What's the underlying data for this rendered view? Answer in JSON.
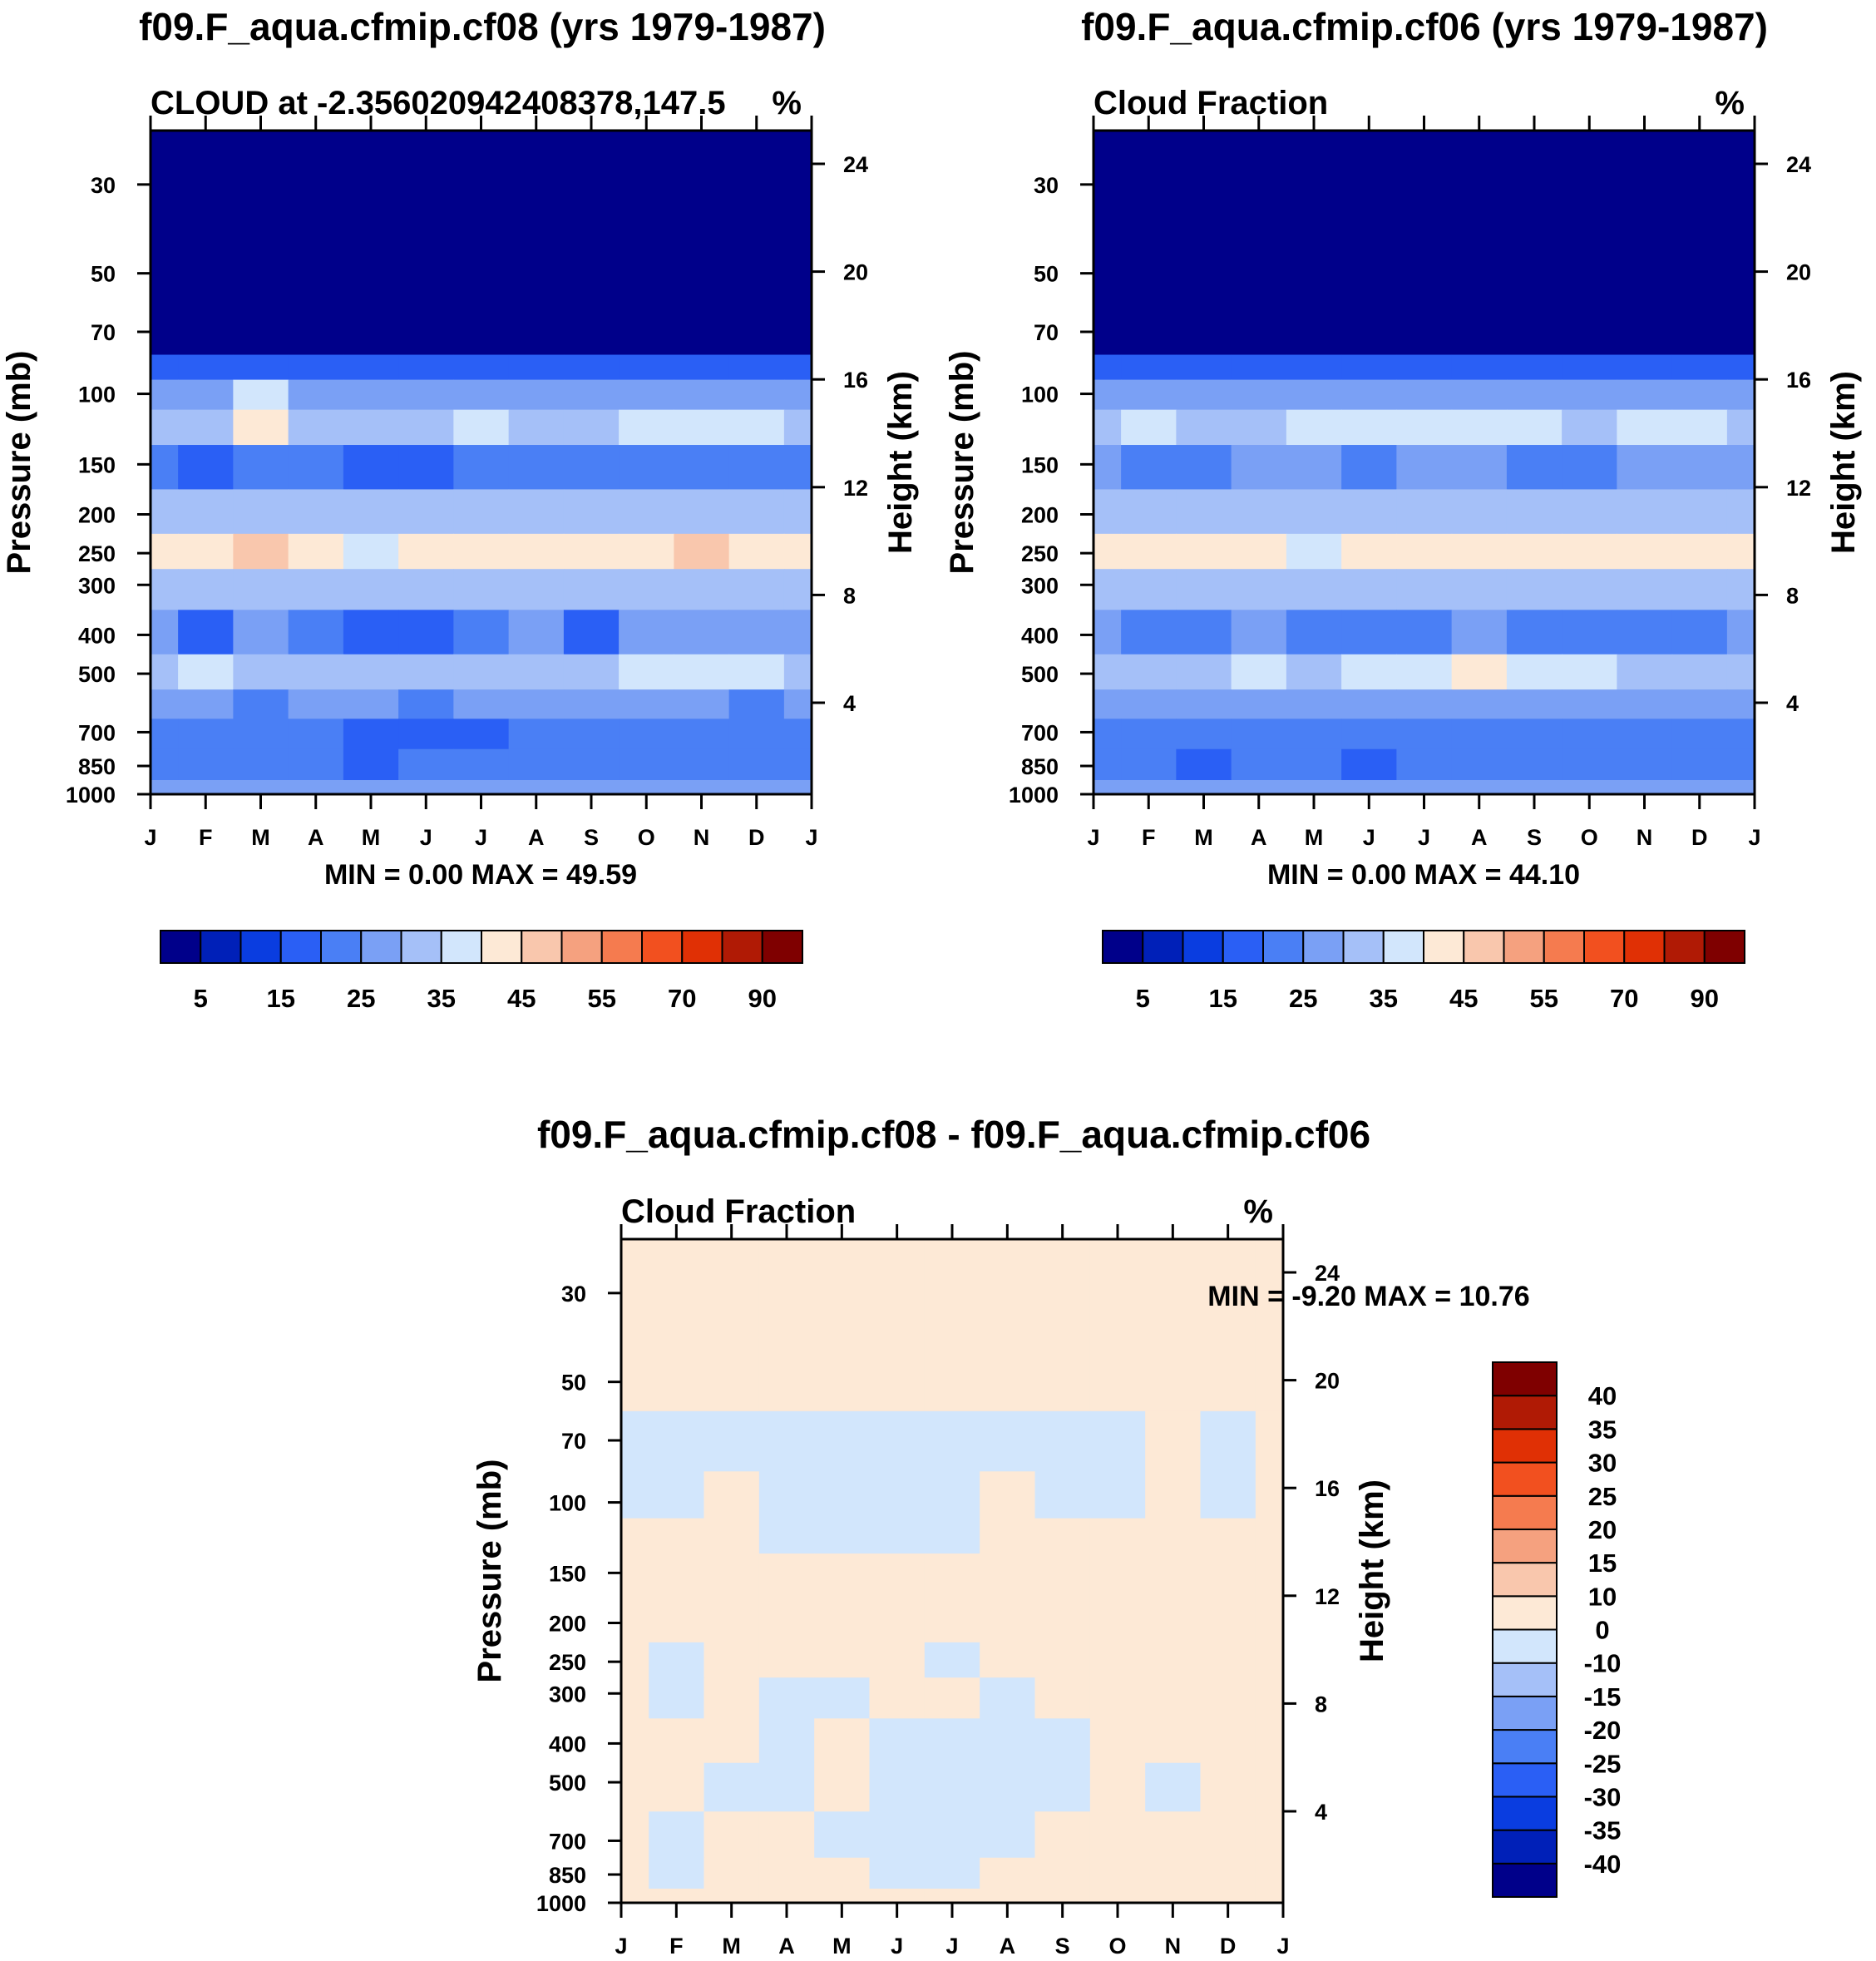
{
  "chart_data": [
    {
      "type": "heatmap",
      "title": "f09.F_aqua.cfmip.cf08 (yrs 1979-1987)",
      "subtitle_left": "CLOUD at -2.356020942408378,147.5",
      "subtitle_right": "%",
      "ylabel": "Pressure (mb)",
      "ylabel_right": "Height (km)",
      "x_ticks": [
        "J",
        "F",
        "M",
        "A",
        "M",
        "J",
        "J",
        "A",
        "S",
        "O",
        "N",
        "D",
        "J"
      ],
      "y_ticks": [
        "30",
        "50",
        "70",
        "100",
        "150",
        "200",
        "250",
        "300",
        "400",
        "500",
        "700",
        "850",
        "1000"
      ],
      "y_ticks_right": [
        "24",
        "20",
        "16",
        "12",
        "8",
        "4"
      ],
      "min_max_label": "MIN =    0.00 MAX =  49.59",
      "min_value": 0.0,
      "max_value": 49.59,
      "colorbar_labels": [
        "5",
        "15",
        "25",
        "35",
        "45",
        "55",
        "70",
        "90"
      ],
      "colorbar_levels": [
        0,
        5,
        10,
        15,
        20,
        25,
        30,
        35,
        40,
        45,
        50,
        55,
        60,
        70,
        80,
        90,
        100
      ],
      "colorbar_colors": [
        "#00008a",
        "#0020b8",
        "#0a3de0",
        "#2a5ff5",
        "#4a7ff5",
        "#7aa0f5",
        "#a5c0f8",
        "#d2e6fc",
        "#fde9d6",
        "#f9c7ad",
        "#f5a17f",
        "#f57b4f",
        "#f2501f",
        "#e03005",
        "#b01a05",
        "#7f0000"
      ],
      "rows": [
        {
          "p": 1000,
          "values": [
            28,
            28,
            27,
            27,
            27,
            27,
            27,
            27,
            27,
            27,
            27,
            27,
            28
          ]
        },
        {
          "p": 850,
          "values": [
            22,
            20,
            20,
            21,
            16,
            21,
            21,
            22,
            22,
            21,
            21,
            21,
            22
          ]
        },
        {
          "p": 700,
          "values": [
            21,
            21,
            21,
            21,
            18,
            16,
            16,
            21,
            21,
            21,
            21,
            21,
            21
          ]
        },
        {
          "p": 600,
          "values": [
            25,
            26,
            24,
            25,
            25,
            24,
            25,
            26,
            25,
            26,
            25,
            24,
            25
          ]
        },
        {
          "p": 500,
          "values": [
            33,
            38,
            33,
            32,
            33,
            34,
            33,
            34,
            33,
            35,
            36,
            39,
            34
          ]
        },
        {
          "p": 400,
          "values": [
            26,
            17,
            26,
            22,
            18,
            18,
            22,
            26,
            19,
            25,
            26,
            25,
            26
          ]
        },
        {
          "p": 300,
          "values": [
            33,
            33,
            33,
            32,
            30,
            31,
            32,
            33,
            33,
            33,
            33,
            33,
            33
          ]
        },
        {
          "p": 250,
          "values": [
            42,
            43,
            47,
            43,
            37,
            42,
            43,
            43,
            43,
            43,
            47,
            43,
            42
          ]
        },
        {
          "p": 200,
          "values": [
            33,
            32,
            34,
            33,
            34,
            34,
            34,
            34,
            34,
            34,
            34,
            34,
            33
          ]
        },
        {
          "p": 150,
          "values": [
            23,
            16,
            24,
            20,
            16,
            17,
            22,
            24,
            24,
            23,
            24,
            24,
            23
          ]
        },
        {
          "p": 120,
          "values": [
            33,
            33,
            42,
            33,
            30,
            32,
            37,
            34,
            33,
            35,
            37,
            38,
            33
          ]
        },
        {
          "p": 100,
          "values": [
            28,
            28,
            36,
            28,
            28,
            28,
            28,
            28,
            28,
            28,
            28,
            28,
            28
          ]
        },
        {
          "p": 85,
          "values": [
            15,
            16,
            15,
            15,
            16,
            16,
            15,
            15,
            16,
            15,
            16,
            15,
            15
          ]
        },
        {
          "p": 75,
          "values": [
            1,
            1,
            1,
            1,
            1,
            1,
            1,
            1,
            1,
            1,
            1,
            1,
            1
          ]
        },
        {
          "p": 30,
          "values": [
            0,
            0,
            0,
            0,
            0,
            0,
            0,
            0,
            0,
            0,
            0,
            0,
            0
          ]
        }
      ]
    },
    {
      "type": "heatmap",
      "title": "f09.F_aqua.cfmip.cf06 (yrs 1979-1987)",
      "subtitle_left": "Cloud Fraction",
      "subtitle_right": "%",
      "ylabel": "Pressure (mb)",
      "ylabel_right": "Height (km)",
      "x_ticks": [
        "J",
        "F",
        "M",
        "A",
        "M",
        "J",
        "J",
        "A",
        "S",
        "O",
        "N",
        "D",
        "J"
      ],
      "y_ticks": [
        "30",
        "50",
        "70",
        "100",
        "150",
        "200",
        "250",
        "300",
        "400",
        "500",
        "700",
        "850",
        "1000"
      ],
      "y_ticks_right": [
        "24",
        "20",
        "16",
        "12",
        "8",
        "4"
      ],
      "min_max_label": "MIN =    0.00 MAX =  44.10",
      "min_value": 0.0,
      "max_value": 44.1,
      "colorbar_labels": [
        "5",
        "15",
        "25",
        "35",
        "45",
        "55",
        "70",
        "90"
      ],
      "colorbar_levels": [
        0,
        5,
        10,
        15,
        20,
        25,
        30,
        35,
        40,
        45,
        50,
        55,
        60,
        70,
        80,
        90,
        100
      ],
      "colorbar_colors": [
        "#00008a",
        "#0020b8",
        "#0a3de0",
        "#2a5ff5",
        "#4a7ff5",
        "#7aa0f5",
        "#a5c0f8",
        "#d2e6fc",
        "#fde9d6",
        "#f9c7ad",
        "#f5a17f",
        "#f57b4f",
        "#f2501f",
        "#e03005",
        "#b01a05",
        "#7f0000"
      ],
      "rows": [
        {
          "p": 1000,
          "values": [
            28,
            28,
            27,
            27,
            27,
            27,
            27,
            27,
            27,
            27,
            27,
            27,
            28
          ]
        },
        {
          "p": 850,
          "values": [
            22,
            21,
            17,
            21,
            21,
            17,
            21,
            22,
            22,
            21,
            21,
            21,
            22
          ]
        },
        {
          "p": 700,
          "values": [
            21,
            21,
            21,
            21,
            21,
            21,
            21,
            21,
            21,
            21,
            21,
            21,
            21
          ]
        },
        {
          "p": 600,
          "values": [
            25,
            26,
            25,
            25,
            25,
            25,
            26,
            26,
            25,
            26,
            25,
            25,
            25
          ]
        },
        {
          "p": 500,
          "values": [
            33,
            33,
            33,
            37,
            33,
            37,
            38,
            41,
            38,
            37,
            33,
            34,
            33
          ]
        },
        {
          "p": 400,
          "values": [
            27,
            22,
            21,
            26,
            21,
            22,
            24,
            26,
            22,
            23,
            23,
            23,
            27
          ]
        },
        {
          "p": 300,
          "values": [
            33,
            33,
            32,
            32,
            30,
            32,
            33,
            33,
            33,
            33,
            33,
            33,
            33
          ]
        },
        {
          "p": 250,
          "values": [
            41,
            42,
            42,
            42,
            37,
            41,
            41,
            42,
            41,
            41,
            41,
            40,
            41
          ]
        },
        {
          "p": 200,
          "values": [
            33,
            32,
            33,
            33,
            33,
            34,
            34,
            34,
            34,
            34,
            34,
            34,
            33
          ]
        },
        {
          "p": 150,
          "values": [
            26,
            22,
            24,
            25,
            26,
            22,
            26,
            26,
            22,
            22,
            26,
            26,
            26
          ]
        },
        {
          "p": 120,
          "values": [
            33,
            37,
            33,
            34,
            37,
            37,
            38,
            37,
            35,
            34,
            35,
            37,
            33
          ]
        },
        {
          "p": 100,
          "values": [
            28,
            28,
            28,
            28,
            28,
            28,
            28,
            28,
            28,
            28,
            28,
            28,
            28
          ]
        },
        {
          "p": 85,
          "values": [
            15,
            16,
            15,
            15,
            16,
            16,
            15,
            15,
            16,
            15,
            16,
            15,
            15
          ]
        },
        {
          "p": 75,
          "values": [
            1,
            1,
            1,
            1,
            1,
            1,
            1,
            1,
            1,
            1,
            1,
            1,
            1
          ]
        },
        {
          "p": 30,
          "values": [
            0,
            0,
            0,
            0,
            0,
            0,
            0,
            0,
            0,
            0,
            0,
            0,
            0
          ]
        }
      ]
    },
    {
      "type": "heatmap",
      "title": "f09.F_aqua.cfmip.cf08 - f09.F_aqua.cfmip.cf06",
      "subtitle_left": "Cloud Fraction",
      "subtitle_right": "%",
      "ylabel": "Pressure (mb)",
      "ylabel_right": "Height (km)",
      "x_ticks": [
        "J",
        "F",
        "M",
        "A",
        "M",
        "J",
        "J",
        "A",
        "S",
        "O",
        "N",
        "D",
        "J"
      ],
      "y_ticks": [
        "30",
        "50",
        "70",
        "100",
        "150",
        "200",
        "250",
        "300",
        "400",
        "500",
        "700",
        "850",
        "1000"
      ],
      "y_ticks_right": [
        "24",
        "20",
        "16",
        "12",
        "8",
        "4"
      ],
      "min_max_label": "MIN =  -9.20 MAX =  10.76",
      "min_value": -9.2,
      "max_value": 10.76,
      "colorbar_labels": [
        "40",
        "35",
        "30",
        "25",
        "20",
        "15",
        "10",
        "0",
        "-10",
        "-15",
        "-20",
        "-25",
        "-30",
        "-35",
        "-40"
      ],
      "colorbar_levels": [
        -50,
        -40,
        -35,
        -30,
        -25,
        -20,
        -15,
        -10,
        0,
        10,
        15,
        20,
        25,
        30,
        35,
        40,
        50
      ],
      "colorbar_colors": [
        "#00008a",
        "#0020b8",
        "#0a3de0",
        "#2a5ff5",
        "#4a7ff5",
        "#7aa0f5",
        "#a5c0f8",
        "#d2e6fc",
        "#fde9d6",
        "#f9c7ad",
        "#f5a17f",
        "#f57b4f",
        "#f2501f",
        "#e03005",
        "#b01a05",
        "#7f0000"
      ],
      "rows": [
        {
          "p": 1000,
          "values": [
            2,
            2,
            2,
            2,
            2,
            2,
            2,
            2,
            2,
            2,
            2,
            2,
            2
          ]
        },
        {
          "p": 850,
          "values": [
            2,
            -3,
            2,
            2,
            2,
            -3,
            -3,
            2,
            2,
            2,
            2,
            2,
            2
          ]
        },
        {
          "p": 700,
          "values": [
            2,
            -3,
            2,
            2,
            -2,
            -3,
            -3,
            -2,
            2,
            2,
            2,
            2,
            2
          ]
        },
        {
          "p": 500,
          "values": [
            2,
            2,
            -2,
            -2,
            2,
            -2,
            -3,
            -3,
            -2,
            2,
            -2,
            2,
            2
          ]
        },
        {
          "p": 400,
          "values": [
            2,
            2,
            2,
            -3,
            2,
            -2,
            -3,
            -3,
            -2,
            2,
            2,
            2,
            2
          ]
        },
        {
          "p": 300,
          "values": [
            2,
            -3,
            2,
            -2,
            -2,
            2,
            2,
            -3,
            2,
            2,
            2,
            2,
            2
          ]
        },
        {
          "p": 250,
          "values": [
            2,
            -2,
            2,
            2,
            2,
            2,
            -2,
            2,
            2,
            2,
            3,
            2,
            2
          ]
        },
        {
          "p": 200,
          "values": [
            2,
            2,
            2,
            2,
            2,
            2,
            2,
            2,
            2,
            2,
            2,
            2,
            2
          ]
        },
        {
          "p": 150,
          "values": [
            2,
            2,
            2,
            2,
            2,
            2,
            2,
            2,
            2,
            2,
            2,
            2,
            2
          ]
        },
        {
          "p": 120,
          "values": [
            2,
            2,
            2,
            -2,
            -2,
            -2,
            -2,
            2,
            2,
            2,
            2,
            2,
            2
          ]
        },
        {
          "p": 100,
          "values": [
            -2,
            -2,
            2,
            -2,
            -2,
            -2,
            -2,
            2,
            -2,
            -2,
            2,
            -2,
            2
          ]
        },
        {
          "p": 70,
          "values": [
            -2,
            -2,
            -2,
            -2,
            -2,
            -2,
            -2,
            -2,
            -2,
            -2,
            2,
            -2,
            2
          ]
        },
        {
          "p": 50,
          "values": [
            2,
            2,
            2,
            2,
            2,
            2,
            2,
            2,
            2,
            2,
            2,
            2,
            2
          ]
        },
        {
          "p": 30,
          "values": [
            2,
            2,
            2,
            2,
            2,
            2,
            2,
            2,
            2,
            2,
            2,
            2,
            2
          ]
        }
      ]
    }
  ]
}
